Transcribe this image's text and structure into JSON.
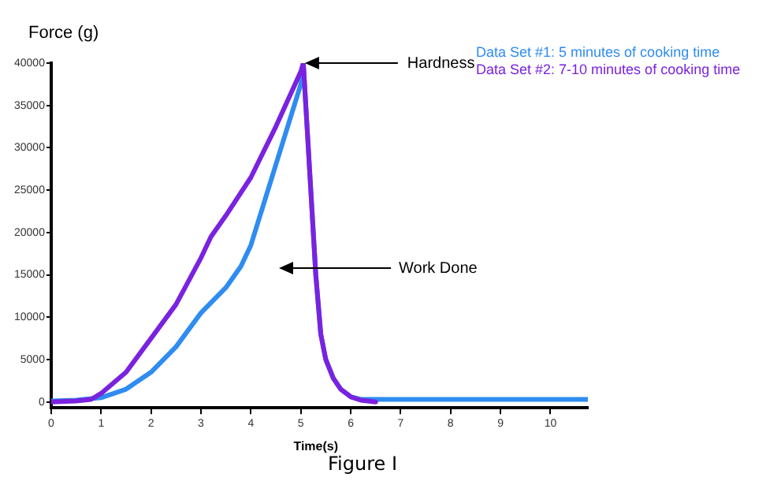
{
  "chart_data": {
    "type": "line",
    "ylabel": "Force (g)",
    "xlabel": "Time(s)",
    "xlim": [
      0,
      10.75
    ],
    "xticks": [
      0,
      1,
      2,
      3,
      4,
      5,
      6,
      7,
      8,
      9,
      10
    ],
    "ylim": [
      -700,
      40000
    ],
    "yticks": [
      0,
      5000,
      10000,
      15000,
      20000,
      25000,
      30000,
      35000,
      40000
    ],
    "grid": false,
    "legend": "top right",
    "series": [
      {
        "name": "Data Set #1: 5 minutes of cooking time",
        "color": "#2f8cf0",
        "x": [
          0,
          0.5,
          1,
          1.5,
          2,
          2.5,
          3,
          3.5,
          3.8,
          4,
          4.5,
          5,
          5.05,
          5.2,
          5.3,
          5.4,
          5.5,
          5.65,
          5.8,
          6,
          6.2,
          7,
          8,
          9,
          10,
          10.75
        ],
        "values": [
          100,
          200,
          500,
          1500,
          3500,
          6500,
          10500,
          13500,
          16000,
          18500,
          28000,
          37500,
          40000,
          25000,
          15000,
          8000,
          5000,
          2800,
          1500,
          600,
          300,
          300,
          300,
          300,
          300,
          300
        ]
      },
      {
        "name": "Data Set #2: 7-10 minutes of cooking time",
        "color": "#7a22e0",
        "x": [
          0,
          0.5,
          0.8,
          1,
          1.5,
          2,
          2.5,
          3,
          3.2,
          3.5,
          4,
          4.5,
          5,
          5.05,
          5.2,
          5.3,
          5.4,
          5.5,
          5.65,
          5.8,
          6,
          6.2,
          6.5
        ],
        "values": [
          0,
          100,
          300,
          1000,
          3500,
          7500,
          11500,
          17000,
          19500,
          22000,
          26500,
          32500,
          39000,
          40000,
          25000,
          15000,
          8000,
          5000,
          2800,
          1500,
          600,
          200,
          0
        ]
      }
    ],
    "annotations": [
      {
        "text": "Hardness",
        "x": 5.05,
        "y": 40000
      },
      "Work Done",
      "Figure I"
    ]
  }
}
